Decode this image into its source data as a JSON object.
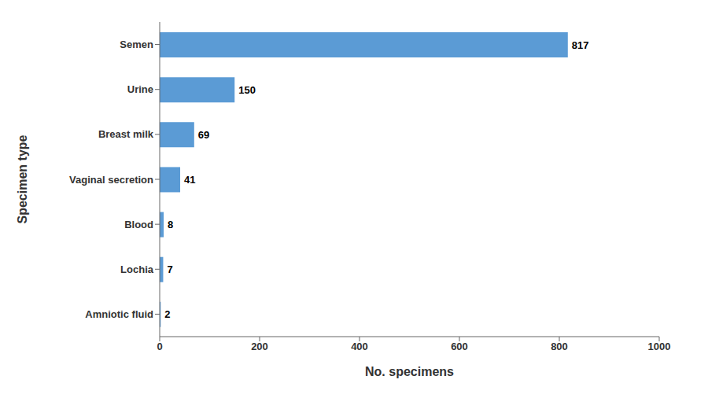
{
  "chart_data": {
    "type": "bar",
    "orientation": "horizontal",
    "categories": [
      "Semen",
      "Urine",
      "Breast milk",
      "Vaginal secretion",
      "Blood",
      "Lochia",
      "Amniotic fluid"
    ],
    "values": [
      817,
      150,
      69,
      41,
      8,
      7,
      2
    ],
    "color": "#5b9bd5",
    "xlabel": "No. specimens",
    "ylabel": "Specimen type",
    "xlim": [
      0,
      1000
    ],
    "xticks": [
      0,
      200,
      400,
      600,
      800,
      1000
    ],
    "grid": false,
    "data_labels": true
  }
}
